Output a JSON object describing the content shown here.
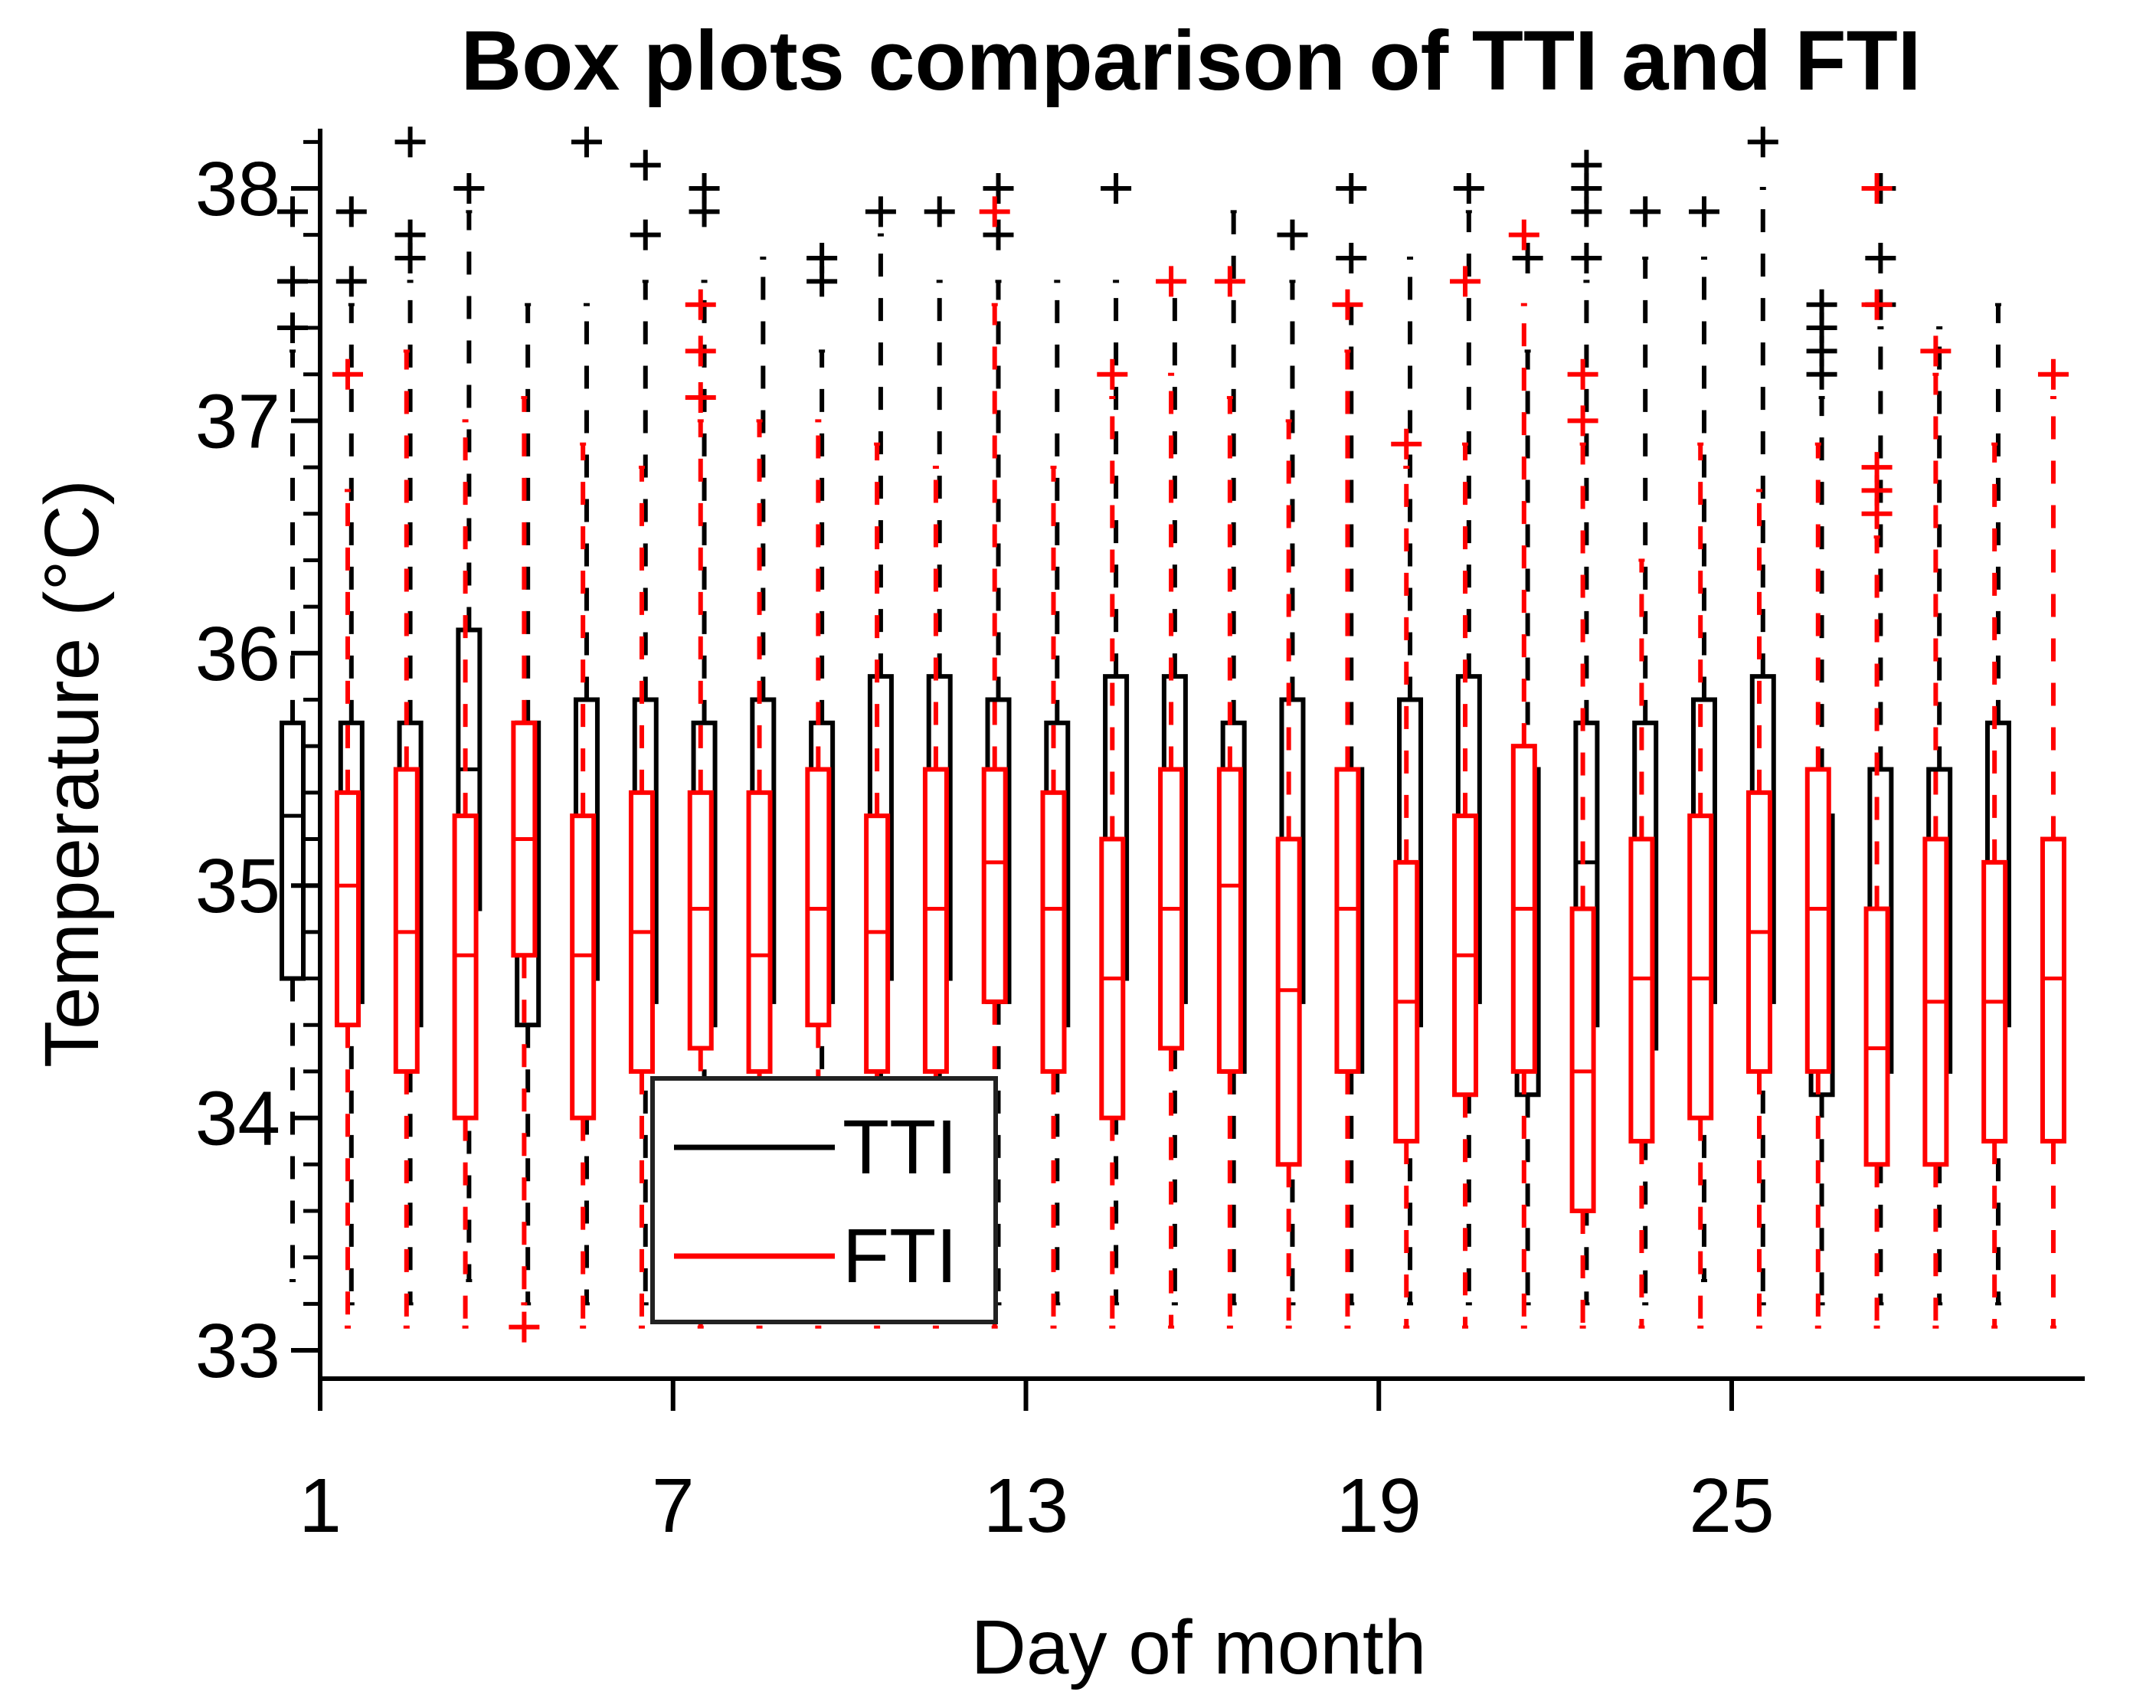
{
  "chart_data": {
    "type": "boxplot",
    "title": "Box plots comparison of TTI and FTI",
    "xlabel": "Day of month",
    "ylabel": "Temperature (°C)",
    "xlim": [
      1,
      30.8
    ],
    "ylim": [
      32.88,
      38.25
    ],
    "x_ticks": [
      1,
      7,
      13,
      19,
      25
    ],
    "x_tick_labels": [
      "1",
      "7",
      "13",
      "19",
      "25"
    ],
    "y_ticks": [
      33,
      34,
      35,
      36,
      37,
      38
    ],
    "y_tick_labels": [
      "33",
      "34",
      "35",
      "36",
      "37",
      "38"
    ],
    "legend": {
      "position": "lower-left",
      "entries": [
        {
          "name": "TTI",
          "color": "#000000"
        },
        {
          "name": "FTI",
          "color": "#ff0000"
        }
      ]
    },
    "series": [
      {
        "name": "TTI",
        "color": "#000000",
        "boxes": [
          {
            "day": 1,
            "min": 33.3,
            "q1": 34.6,
            "median": 35.3,
            "q3": 35.7,
            "max": 37.3,
            "outliers": [
              37.4,
              37.6,
              37.9
            ]
          },
          {
            "day": 2,
            "min": 33.2,
            "q1": 34.5,
            "median": 35.0,
            "q3": 35.7,
            "max": 37.5,
            "outliers": [
              37.6,
              37.9
            ]
          },
          {
            "day": 3,
            "min": 33.2,
            "q1": 34.4,
            "median": 35.0,
            "q3": 35.7,
            "max": 37.6,
            "outliers": [
              37.7,
              37.8,
              38.2
            ]
          },
          {
            "day": 4,
            "min": 33.3,
            "q1": 34.9,
            "median": 35.5,
            "q3": 36.1,
            "max": 37.9,
            "outliers": [
              38.0
            ]
          },
          {
            "day": 5,
            "min": 33.2,
            "q1": 34.4,
            "median": 35.1,
            "q3": 35.7,
            "max": 37.5,
            "outliers": []
          },
          {
            "day": 6,
            "min": 33.2,
            "q1": 34.6,
            "median": 35.3,
            "q3": 35.8,
            "max": 37.5,
            "outliers": [
              38.2
            ]
          },
          {
            "day": 7,
            "min": 33.2,
            "q1": 34.5,
            "median": 35.2,
            "q3": 35.8,
            "max": 37.6,
            "outliers": [
              37.8,
              38.1
            ]
          },
          {
            "day": 8,
            "min": 33.2,
            "q1": 34.4,
            "median": 35.0,
            "q3": 35.7,
            "max": 37.6,
            "outliers": [
              37.9,
              38.0
            ]
          },
          {
            "day": 9,
            "min": 33.2,
            "q1": 34.5,
            "median": 35.2,
            "q3": 35.8,
            "max": 37.7,
            "outliers": []
          },
          {
            "day": 10,
            "min": 33.2,
            "q1": 34.5,
            "median": 35.1,
            "q3": 35.7,
            "max": 37.3,
            "outliers": [
              37.6,
              37.7
            ]
          },
          {
            "day": 11,
            "min": 33.2,
            "q1": 34.6,
            "median": 35.3,
            "q3": 35.9,
            "max": 37.8,
            "outliers": [
              37.9
            ]
          },
          {
            "day": 12,
            "min": 33.2,
            "q1": 34.6,
            "median": 35.3,
            "q3": 35.9,
            "max": 37.6,
            "outliers": [
              37.9
            ]
          },
          {
            "day": 13,
            "min": 33.2,
            "q1": 34.5,
            "median": 35.1,
            "q3": 35.8,
            "max": 37.6,
            "outliers": [
              37.8,
              38.0
            ]
          },
          {
            "day": 14,
            "min": 33.2,
            "q1": 34.4,
            "median": 35.0,
            "q3": 35.7,
            "max": 37.6,
            "outliers": []
          },
          {
            "day": 15,
            "min": 33.2,
            "q1": 34.6,
            "median": 35.2,
            "q3": 35.9,
            "max": 37.6,
            "outliers": [
              38.0
            ]
          },
          {
            "day": 16,
            "min": 33.2,
            "q1": 34.5,
            "median": 35.2,
            "q3": 35.9,
            "max": 37.6,
            "outliers": []
          },
          {
            "day": 17,
            "min": 33.2,
            "q1": 34.2,
            "median": 34.9,
            "q3": 35.7,
            "max": 37.9,
            "outliers": []
          },
          {
            "day": 18,
            "min": 33.2,
            "q1": 34.5,
            "median": 35.1,
            "q3": 35.8,
            "max": 37.6,
            "outliers": [
              37.8
            ]
          },
          {
            "day": 19,
            "min": 33.2,
            "q1": 34.2,
            "median": 34.8,
            "q3": 35.5,
            "max": 37.5,
            "outliers": [
              37.7,
              38.0
            ]
          },
          {
            "day": 20,
            "min": 33.2,
            "q1": 34.4,
            "median": 35.1,
            "q3": 35.8,
            "max": 37.7,
            "outliers": []
          },
          {
            "day": 21,
            "min": 33.2,
            "q1": 34.5,
            "median": 35.1,
            "q3": 35.9,
            "max": 37.9,
            "outliers": [
              38.0
            ]
          },
          {
            "day": 22,
            "min": 33.2,
            "q1": 34.1,
            "median": 34.7,
            "q3": 35.5,
            "max": 37.3,
            "outliers": [
              37.7
            ]
          },
          {
            "day": 23,
            "min": 33.2,
            "q1": 34.4,
            "median": 35.1,
            "q3": 35.7,
            "max": 37.6,
            "outliers": [
              37.7,
              37.9,
              38.0,
              38.1
            ]
          },
          {
            "day": 24,
            "min": 33.2,
            "q1": 34.3,
            "median": 35.0,
            "q3": 35.7,
            "max": 37.7,
            "outliers": [
              37.9
            ]
          },
          {
            "day": 25,
            "min": 33.3,
            "q1": 34.5,
            "median": 35.1,
            "q3": 35.8,
            "max": 37.7,
            "outliers": [
              37.9
            ]
          },
          {
            "day": 26,
            "min": 33.2,
            "q1": 34.5,
            "median": 35.2,
            "q3": 35.9,
            "max": 38.0,
            "outliers": [
              38.2
            ]
          },
          {
            "day": 27,
            "min": 33.2,
            "q1": 34.1,
            "median": 34.6,
            "q3": 35.3,
            "max": 37.1,
            "outliers": [
              37.2,
              37.3,
              37.4,
              37.5
            ]
          },
          {
            "day": 28,
            "min": 33.2,
            "q1": 34.2,
            "median": 34.85,
            "q3": 35.5,
            "max": 37.4,
            "outliers": [
              37.5,
              37.7,
              38.0
            ]
          },
          {
            "day": 29,
            "min": 33.2,
            "q1": 34.2,
            "median": 34.8,
            "q3": 35.5,
            "max": 37.4,
            "outliers": []
          },
          {
            "day": 30,
            "min": 33.2,
            "q1": 34.4,
            "median": 35.0,
            "q3": 35.7,
            "max": 37.5,
            "outliers": []
          }
        ]
      },
      {
        "name": "FTI",
        "color": "#ff0000",
        "boxes": [
          {
            "day": 1,
            "min": 33.1,
            "q1": 34.4,
            "median": 35.0,
            "q3": 35.4,
            "max": 36.7,
            "outliers": [
              37.2
            ]
          },
          {
            "day": 2,
            "min": 33.1,
            "q1": 34.2,
            "median": 34.8,
            "q3": 35.5,
            "max": 37.3,
            "outliers": []
          },
          {
            "day": 3,
            "min": 33.1,
            "q1": 34.0,
            "median": 34.7,
            "q3": 35.3,
            "max": 37.0,
            "outliers": []
          },
          {
            "day": 4,
            "min": 33.2,
            "q1": 34.7,
            "median": 35.2,
            "q3": 35.7,
            "max": 37.1,
            "outliers": [
              33.1
            ]
          },
          {
            "day": 5,
            "min": 33.1,
            "q1": 34.0,
            "median": 34.7,
            "q3": 35.3,
            "max": 36.9,
            "outliers": []
          },
          {
            "day": 6,
            "min": 33.1,
            "q1": 34.2,
            "median": 34.8,
            "q3": 35.4,
            "max": 36.8,
            "outliers": []
          },
          {
            "day": 7,
            "min": 33.1,
            "q1": 34.3,
            "median": 34.9,
            "q3": 35.4,
            "max": 37.0,
            "outliers": [
              37.1,
              37.3,
              37.5
            ]
          },
          {
            "day": 8,
            "min": 33.1,
            "q1": 34.2,
            "median": 34.7,
            "q3": 35.4,
            "max": 37.0,
            "outliers": []
          },
          {
            "day": 9,
            "min": 33.1,
            "q1": 34.4,
            "median": 34.9,
            "q3": 35.5,
            "max": 37.0,
            "outliers": []
          },
          {
            "day": 10,
            "min": 33.1,
            "q1": 34.2,
            "median": 34.8,
            "q3": 35.3,
            "max": 36.9,
            "outliers": []
          },
          {
            "day": 11,
            "min": 33.1,
            "q1": 34.2,
            "median": 34.9,
            "q3": 35.5,
            "max": 36.8,
            "outliers": []
          },
          {
            "day": 12,
            "min": 33.1,
            "q1": 34.5,
            "median": 35.1,
            "q3": 35.5,
            "max": 37.5,
            "outliers": [
              37.9
            ]
          },
          {
            "day": 13,
            "min": 33.1,
            "q1": 34.2,
            "median": 34.9,
            "q3": 35.4,
            "max": 36.8,
            "outliers": []
          },
          {
            "day": 14,
            "min": 33.1,
            "q1": 34.0,
            "median": 34.6,
            "q3": 35.2,
            "max": 37.1,
            "outliers": [
              37.2
            ]
          },
          {
            "day": 15,
            "min": 33.1,
            "q1": 34.3,
            "median": 34.9,
            "q3": 35.5,
            "max": 37.2,
            "outliers": [
              37.6
            ]
          },
          {
            "day": 16,
            "min": 33.1,
            "q1": 34.2,
            "median": 35.0,
            "q3": 35.5,
            "max": 37.1,
            "outliers": [
              37.6
            ]
          },
          {
            "day": 17,
            "min": 33.1,
            "q1": 33.8,
            "median": 34.55,
            "q3": 35.2,
            "max": 37.0,
            "outliers": []
          },
          {
            "day": 18,
            "min": 33.1,
            "q1": 34.2,
            "median": 34.9,
            "q3": 35.5,
            "max": 37.3,
            "outliers": [
              37.5
            ]
          },
          {
            "day": 19,
            "min": 33.1,
            "q1": 33.9,
            "median": 34.5,
            "q3": 35.1,
            "max": 36.8,
            "outliers": [
              36.9
            ]
          },
          {
            "day": 20,
            "min": 33.1,
            "q1": 34.1,
            "median": 34.7,
            "q3": 35.3,
            "max": 36.9,
            "outliers": [
              37.6
            ]
          },
          {
            "day": 21,
            "min": 33.1,
            "q1": 34.2,
            "median": 34.9,
            "q3": 35.6,
            "max": 37.5,
            "outliers": [
              37.8
            ]
          },
          {
            "day": 22,
            "min": 33.1,
            "q1": 33.6,
            "median": 34.2,
            "q3": 34.9,
            "max": 36.9,
            "outliers": [
              37.0,
              37.2
            ]
          },
          {
            "day": 23,
            "min": 33.1,
            "q1": 33.9,
            "median": 34.6,
            "q3": 35.2,
            "max": 36.4,
            "outliers": []
          },
          {
            "day": 24,
            "min": 33.1,
            "q1": 34.0,
            "median": 34.6,
            "q3": 35.3,
            "max": 36.9,
            "outliers": []
          },
          {
            "day": 25,
            "min": 33.1,
            "q1": 34.2,
            "median": 34.8,
            "q3": 35.4,
            "max": 36.7,
            "outliers": []
          },
          {
            "day": 26,
            "min": 33.1,
            "q1": 34.2,
            "median": 34.9,
            "q3": 35.5,
            "max": 36.9,
            "outliers": []
          },
          {
            "day": 27,
            "min": 33.1,
            "q1": 33.8,
            "median": 34.3,
            "q3": 34.9,
            "max": 36.5,
            "outliers": [
              36.6,
              36.7,
              36.8,
              37.5,
              38.0
            ]
          },
          {
            "day": 28,
            "min": 33.1,
            "q1": 33.8,
            "median": 34.5,
            "q3": 35.2,
            "max": 37.2,
            "outliers": [
              37.3
            ]
          },
          {
            "day": 29,
            "min": 33.1,
            "q1": 33.9,
            "median": 34.5,
            "q3": 35.1,
            "max": 36.9,
            "outliers": []
          },
          {
            "day": 30,
            "min": 33.1,
            "q1": 33.9,
            "median": 34.6,
            "q3": 35.2,
            "max": 37.1,
            "outliers": [
              37.2
            ]
          }
        ]
      }
    ]
  }
}
